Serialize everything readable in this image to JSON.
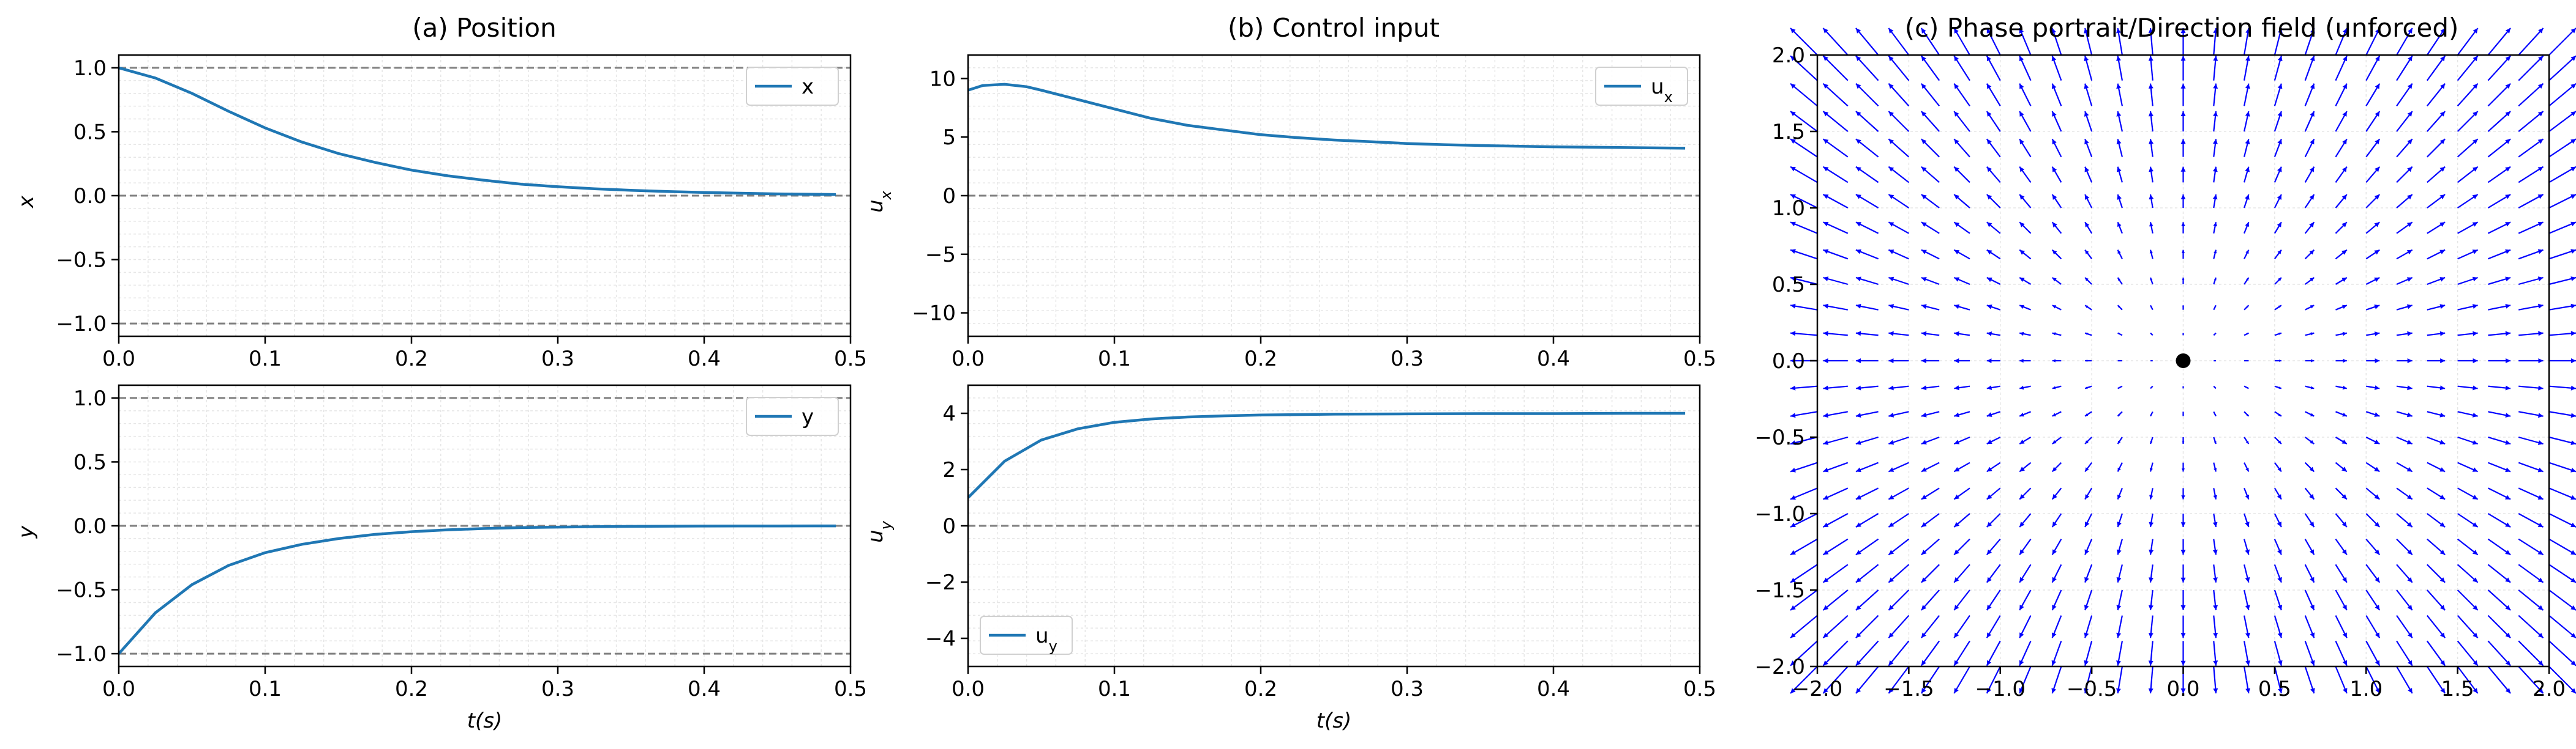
{
  "figure": {
    "subplot_a_title": "(a) Position",
    "subplot_b_title": "(b) Control input",
    "subplot_c_title": "(c) Phase portrait/Direction field (unforced)"
  },
  "colors": {
    "line": "#1f77b4",
    "ref": "#808080",
    "grid": "#e6e6e6",
    "quiver": "#0000ff",
    "equilibrium": "#000000"
  },
  "chart_data": [
    {
      "id": "position-x",
      "type": "line",
      "title": "(a) Position",
      "ylabel": "x",
      "xlabel": "",
      "xlim": [
        0,
        0.5
      ],
      "ylim": [
        -1.1,
        1.1
      ],
      "xticks": [
        "0.0",
        "0.1",
        "0.2",
        "0.3",
        "0.4",
        "0.5"
      ],
      "yticks": [
        "1.0",
        "0.5",
        "0.0",
        "−0.5",
        "−1.0"
      ],
      "ref_lines": [
        1.0,
        0.0,
        -1.0
      ],
      "grid": true,
      "legend": "upper right",
      "series": [
        {
          "name": "x",
          "x": [
            0,
            0.025,
            0.05,
            0.075,
            0.1,
            0.125,
            0.15,
            0.175,
            0.2,
            0.225,
            0.25,
            0.275,
            0.3,
            0.325,
            0.35,
            0.375,
            0.4,
            0.425,
            0.45,
            0.475,
            0.49
          ],
          "y": [
            1.0,
            0.92,
            0.8,
            0.66,
            0.53,
            0.42,
            0.33,
            0.26,
            0.2,
            0.155,
            0.12,
            0.09,
            0.07,
            0.054,
            0.042,
            0.032,
            0.025,
            0.019,
            0.014,
            0.011,
            0.009
          ]
        }
      ]
    },
    {
      "id": "position-y",
      "type": "line",
      "title": "",
      "ylabel": "y",
      "xlabel": "t(s)",
      "xlim": [
        0,
        0.5
      ],
      "ylim": [
        -1.1,
        1.1
      ],
      "xticks": [
        "0.0",
        "0.1",
        "0.2",
        "0.3",
        "0.4",
        "0.5"
      ],
      "yticks": [
        "1.0",
        "0.5",
        "0.0",
        "−0.5",
        "−1.0"
      ],
      "ref_lines": [
        1.0,
        0.0,
        -1.0
      ],
      "grid": true,
      "legend": "upper right",
      "series": [
        {
          "name": "y",
          "x": [
            0,
            0.025,
            0.05,
            0.075,
            0.1,
            0.125,
            0.15,
            0.175,
            0.2,
            0.225,
            0.25,
            0.275,
            0.3,
            0.325,
            0.35,
            0.375,
            0.4,
            0.425,
            0.45,
            0.475,
            0.49
          ],
          "y": [
            -1.0,
            -0.68,
            -0.46,
            -0.31,
            -0.21,
            -0.145,
            -0.1,
            -0.067,
            -0.046,
            -0.031,
            -0.021,
            -0.014,
            -0.01,
            -0.0065,
            -0.0045,
            -0.003,
            -0.002,
            -0.0014,
            -0.001,
            -0.0006,
            -0.0005
          ]
        }
      ]
    },
    {
      "id": "control-ux",
      "type": "line",
      "title": "(b) Control input",
      "ylabel": "u_x",
      "xlabel": "",
      "xlim": [
        0,
        0.5
      ],
      "ylim": [
        -12,
        12
      ],
      "xticks": [
        "0.0",
        "0.1",
        "0.2",
        "0.3",
        "0.4",
        "0.5"
      ],
      "yticks": [
        "10",
        "5",
        "0",
        "−5",
        "−10"
      ],
      "ref_lines": [
        0
      ],
      "grid": true,
      "legend": "upper right",
      "series": [
        {
          "name": "u_x",
          "x": [
            0,
            0.01,
            0.025,
            0.04,
            0.05,
            0.075,
            0.1,
            0.125,
            0.15,
            0.175,
            0.2,
            0.225,
            0.25,
            0.275,
            0.3,
            0.325,
            0.35,
            0.375,
            0.4,
            0.425,
            0.45,
            0.475,
            0.49
          ],
          "y": [
            9.0,
            9.4,
            9.5,
            9.3,
            9.0,
            8.2,
            7.4,
            6.6,
            6.0,
            5.6,
            5.2,
            4.95,
            4.75,
            4.6,
            4.45,
            4.35,
            4.28,
            4.22,
            4.17,
            4.13,
            4.1,
            4.07,
            4.05
          ]
        }
      ]
    },
    {
      "id": "control-uy",
      "type": "line",
      "title": "",
      "ylabel": "u_y",
      "xlabel": "t(s)",
      "xlim": [
        0,
        0.5
      ],
      "ylim": [
        -5,
        5
      ],
      "xticks": [
        "0.0",
        "0.1",
        "0.2",
        "0.3",
        "0.4",
        "0.5"
      ],
      "yticks": [
        "4",
        "2",
        "0",
        "−2",
        "−4"
      ],
      "ref_lines": [
        0
      ],
      "grid": true,
      "legend": "lower left",
      "series": [
        {
          "name": "u_y",
          "x": [
            0,
            0.025,
            0.05,
            0.075,
            0.1,
            0.125,
            0.15,
            0.175,
            0.2,
            0.25,
            0.3,
            0.35,
            0.4,
            0.45,
            0.49
          ],
          "y": [
            1.0,
            2.3,
            3.05,
            3.45,
            3.68,
            3.8,
            3.87,
            3.91,
            3.94,
            3.97,
            3.98,
            3.99,
            3.99,
            4.0,
            4.0
          ]
        }
      ]
    },
    {
      "id": "phase-portrait",
      "type": "quiver",
      "title": "(c) Phase portrait/Direction field (unforced)",
      "xlim": [
        -2,
        2
      ],
      "ylim": [
        -2,
        2
      ],
      "xticks": [
        "−2.0",
        "−1.5",
        "−1.0",
        "−0.5",
        "0.0",
        "0.5",
        "1.0",
        "1.5",
        "2.0"
      ],
      "yticks": [
        "2.0",
        "1.5",
        "1.0",
        "0.5",
        "0.0",
        "−0.5",
        "−1.0",
        "−1.5",
        "−2.0"
      ],
      "grid": true,
      "field": "outward radial (vx ∝ x, vy ∝ y)",
      "equilibrium": [
        0,
        0
      ]
    }
  ]
}
